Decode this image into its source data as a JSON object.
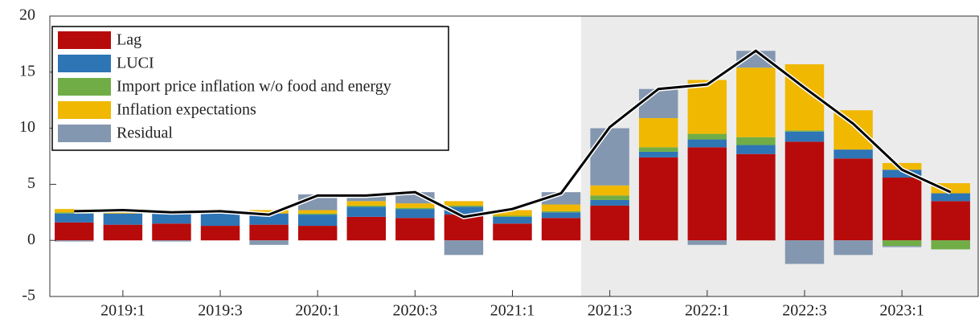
{
  "chart_data": {
    "type": "bar",
    "stacked": true,
    "categories": [
      null,
      "2019:1",
      null,
      "2019:3",
      null,
      "2020:1",
      null,
      "2020:3",
      null,
      "2021:1",
      null,
      "2021:3",
      null,
      "2022:1",
      null,
      "2022:3",
      null,
      "2023:1",
      null
    ],
    "series": [
      {
        "name": "Lag",
        "color": "#b70b0b",
        "values": [
          1.6,
          1.4,
          1.5,
          1.3,
          1.4,
          1.3,
          2.1,
          2.0,
          2.3,
          1.5,
          2.0,
          3.1,
          7.4,
          8.3,
          7.7,
          8.8,
          7.3,
          5.6,
          3.5
        ]
      },
      {
        "name": "LUCI",
        "color": "#2e75b6",
        "values": [
          0.8,
          1.0,
          0.9,
          1.1,
          1.0,
          1.0,
          0.9,
          0.8,
          0.7,
          0.6,
          0.5,
          0.5,
          0.5,
          0.7,
          0.8,
          0.9,
          0.8,
          0.7,
          0.7
        ]
      },
      {
        "name": "Import price inflation w/o food and energy",
        "color": "#70ad47",
        "values": [
          0.1,
          0,
          0,
          0,
          0,
          0.1,
          0.1,
          0.1,
          0.1,
          0.1,
          0.1,
          0.4,
          0.4,
          0.5,
          0.7,
          0.1,
          0,
          -0.5,
          -0.8
        ]
      },
      {
        "name": "Inflation expectations",
        "color": "#f0b800",
        "values": [
          0.3,
          0.1,
          0,
          0.2,
          0.3,
          0.3,
          0.4,
          0.4,
          0.4,
          0.5,
          0.6,
          0.9,
          2.6,
          4.8,
          6.2,
          5.9,
          3.5,
          0.6,
          0.9
        ]
      },
      {
        "name": "Residual",
        "color": "#8497b0",
        "values": [
          -0.1,
          0,
          -0.1,
          0,
          -0.4,
          1.4,
          0.6,
          1.0,
          -1.3,
          0,
          1.1,
          5.1,
          2.6,
          -0.4,
          1.5,
          -2.1,
          -1.3,
          -0.1,
          0
        ]
      }
    ],
    "line": {
      "color": "#000000",
      "values": [
        2.6,
        2.7,
        2.5,
        2.6,
        2.3,
        4.0,
        4.0,
        4.3,
        2.1,
        2.8,
        4.2,
        10.1,
        13.5,
        13.9,
        16.9,
        13.6,
        10.4,
        6.3,
        4.3
      ]
    },
    "ylim": [
      -5,
      20
    ],
    "yticks": [
      -5,
      0,
      5,
      10,
      15,
      20
    ],
    "legend": "upper-left"
  }
}
